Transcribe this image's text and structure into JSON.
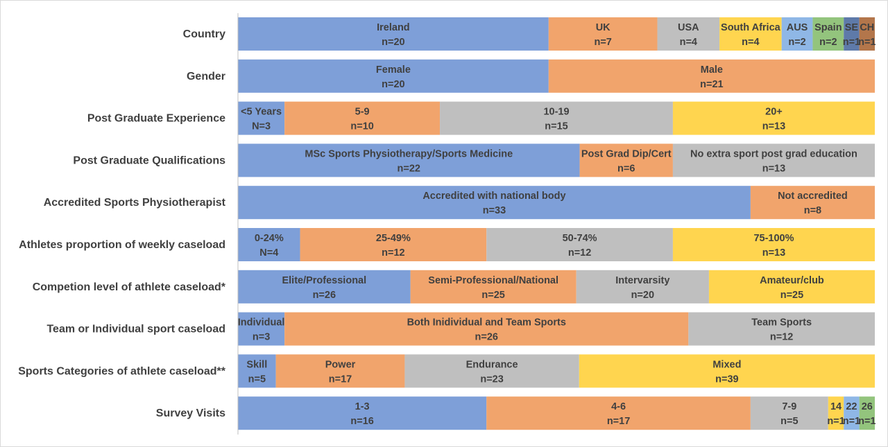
{
  "chart_data": {
    "type": "bar",
    "stacked": true,
    "orientation": "horizontal",
    "normalized": true,
    "grid": false,
    "legend": "none",
    "palette": [
      "#7e9fd8",
      "#f1a46c",
      "#bfbfbf",
      "#ffd54f",
      "#8fb7e6",
      "#93c47d",
      "#5e7aa9",
      "#b3764b"
    ],
    "rows": [
      {
        "label": "Country",
        "segments": [
          {
            "name": "Ireland",
            "count": "n=20",
            "value": 20,
            "color": "#7e9fd8"
          },
          {
            "name": "UK",
            "count": "n=7",
            "value": 7,
            "color": "#f1a46c"
          },
          {
            "name": "USA",
            "count": "n=4",
            "value": 4,
            "color": "#bfbfbf"
          },
          {
            "name": "South Africa",
            "count": "n=4",
            "value": 4,
            "color": "#ffd54f"
          },
          {
            "name": "AUS",
            "count": "n=2",
            "value": 2,
            "color": "#8fb7e6"
          },
          {
            "name": "Spain",
            "count": "n=2",
            "value": 2,
            "color": "#93c47d"
          },
          {
            "name": "SE",
            "count": "n=1",
            "value": 1,
            "color": "#5e7aa9"
          },
          {
            "name": "CH",
            "count": "n=1",
            "value": 1,
            "color": "#b3764b"
          }
        ]
      },
      {
        "label": "Gender",
        "segments": [
          {
            "name": "Female",
            "count": "n=20",
            "value": 20,
            "color": "#7e9fd8"
          },
          {
            "name": "Male",
            "count": "n=21",
            "value": 21,
            "color": "#f1a46c"
          }
        ]
      },
      {
        "label": "Post Graduate Experience",
        "segments": [
          {
            "name": "<5 Years",
            "count": "N=3",
            "value": 3,
            "color": "#7e9fd8"
          },
          {
            "name": "5-9",
            "count": "n=10",
            "value": 10,
            "color": "#f1a46c"
          },
          {
            "name": "10-19",
            "count": "n=15",
            "value": 15,
            "color": "#bfbfbf"
          },
          {
            "name": "20+",
            "count": "n=13",
            "value": 13,
            "color": "#ffd54f"
          }
        ]
      },
      {
        "label": "Post Graduate Qualifications",
        "segments": [
          {
            "name": "MSc Sports Physiotherapy/Sports Medicine",
            "count": "n=22",
            "value": 22,
            "color": "#7e9fd8"
          },
          {
            "name": "Post Grad Dip/Cert",
            "count": "n=6",
            "value": 6,
            "color": "#f1a46c"
          },
          {
            "name": "No extra sport post grad education",
            "count": "n=13",
            "value": 13,
            "color": "#bfbfbf"
          }
        ]
      },
      {
        "label": "Accredited Sports Physiotherapist",
        "segments": [
          {
            "name": "Accredited with national body",
            "count": "n=33",
            "value": 33,
            "color": "#7e9fd8"
          },
          {
            "name": "Not accredited",
            "count": "n=8",
            "value": 8,
            "color": "#f1a46c"
          }
        ]
      },
      {
        "label": "Athletes proportion of weekly caseload",
        "segments": [
          {
            "name": "0-24%",
            "count": "N=4",
            "value": 4,
            "color": "#7e9fd8"
          },
          {
            "name": "25-49%",
            "count": "n=12",
            "value": 12,
            "color": "#f1a46c"
          },
          {
            "name": "50-74%",
            "count": "n=12",
            "value": 12,
            "color": "#bfbfbf"
          },
          {
            "name": "75-100%",
            "count": "n=13",
            "value": 13,
            "color": "#ffd54f"
          }
        ]
      },
      {
        "label": "Competion level of athlete caseload*",
        "segments": [
          {
            "name": "Elite/Professional",
            "count": "n=26",
            "value": 26,
            "color": "#7e9fd8"
          },
          {
            "name": "Semi-Professional/National",
            "count": "n=25",
            "value": 25,
            "color": "#f1a46c"
          },
          {
            "name": "Intervarsity",
            "count": "n=20",
            "value": 20,
            "color": "#bfbfbf"
          },
          {
            "name": "Amateur/club",
            "count": "n=25",
            "value": 25,
            "color": "#ffd54f"
          }
        ]
      },
      {
        "label": "Team or Individual sport caseload",
        "segments": [
          {
            "name": "Individual",
            "count": "n=3",
            "value": 3,
            "color": "#7e9fd8"
          },
          {
            "name": "Both Inidividual and Team Sports",
            "count": "n=26",
            "value": 26,
            "color": "#f1a46c"
          },
          {
            "name": "Team Sports",
            "count": "n=12",
            "value": 12,
            "color": "#bfbfbf"
          }
        ]
      },
      {
        "label": "Sports Categories of athlete caseload**",
        "segments": [
          {
            "name": "Skill",
            "count": "n=5",
            "value": 5,
            "color": "#7e9fd8"
          },
          {
            "name": "Power",
            "count": "n=17",
            "value": 17,
            "color": "#f1a46c"
          },
          {
            "name": "Endurance",
            "count": "n=23",
            "value": 23,
            "color": "#bfbfbf"
          },
          {
            "name": "Mixed",
            "count": "n=39",
            "value": 39,
            "color": "#ffd54f"
          }
        ]
      },
      {
        "label": "Survey Visits",
        "segments": [
          {
            "name": "1-3",
            "count": "n=16",
            "value": 16,
            "color": "#7e9fd8"
          },
          {
            "name": "4-6",
            "count": "n=17",
            "value": 17,
            "color": "#f1a46c"
          },
          {
            "name": "7-9",
            "count": "n=5",
            "value": 5,
            "color": "#bfbfbf"
          },
          {
            "name": "14",
            "count": "n=1",
            "value": 1,
            "color": "#ffd54f"
          },
          {
            "name": "22",
            "count": "n=1",
            "value": 1,
            "color": "#8fb7e6"
          },
          {
            "name": "26",
            "count": "n=1",
            "value": 1,
            "color": "#93c47d"
          }
        ]
      }
    ]
  }
}
